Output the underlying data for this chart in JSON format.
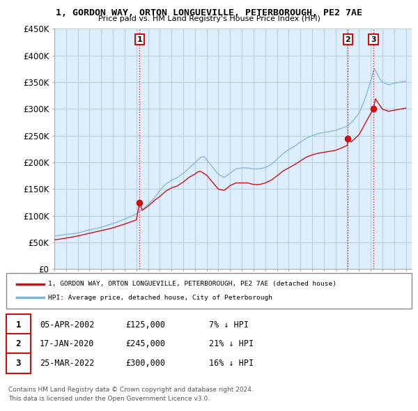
{
  "title": "1, GORDON WAY, ORTON LONGUEVILLE, PETERBOROUGH, PE2 7AE",
  "subtitle": "Price paid vs. HM Land Registry's House Price Index (HPI)",
  "ylim": [
    0,
    450000
  ],
  "yticks": [
    0,
    50000,
    100000,
    150000,
    200000,
    250000,
    300000,
    350000,
    400000,
    450000
  ],
  "ytick_labels": [
    "£0",
    "£50K",
    "£100K",
    "£150K",
    "£200K",
    "£250K",
    "£300K",
    "£350K",
    "£400K",
    "£450K"
  ],
  "hpi_color": "#7ab4d8",
  "price_color": "#cc1111",
  "vline_color": "#cc1111",
  "background_color": "#ffffff",
  "plot_bg_color": "#ddeeff",
  "grid_color": "#bbccdd",
  "sale_points": [
    {
      "year": 2002.27,
      "price": 125000,
      "label": "1",
      "date": "05-APR-2002",
      "amount": "£125,000",
      "pct": "7% ↓ HPI"
    },
    {
      "year": 2020.05,
      "price": 245000,
      "label": "2",
      "date": "17-JAN-2020",
      "amount": "£245,000",
      "pct": "21% ↓ HPI"
    },
    {
      "year": 2022.23,
      "price": 300000,
      "label": "3",
      "date": "25-MAR-2022",
      "amount": "£300,000",
      "pct": "16% ↓ HPI"
    }
  ],
  "legend_line1": "1, GORDON WAY, ORTON LONGUEVILLE, PETERBOROUGH, PE2 7AE (detached house)",
  "legend_line2": "HPI: Average price, detached house, City of Peterborough",
  "footer1": "Contains HM Land Registry data © Crown copyright and database right 2024.",
  "footer2": "This data is licensed under the Open Government Licence v3.0."
}
